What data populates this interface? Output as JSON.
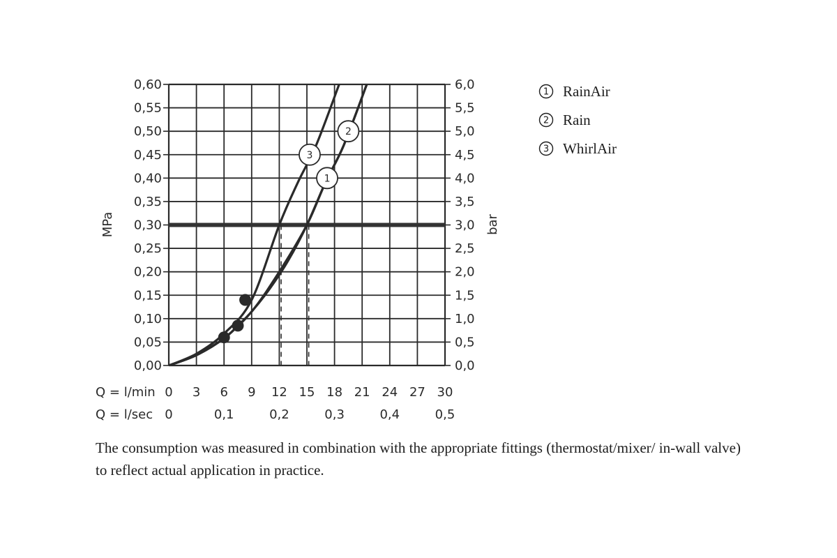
{
  "chart_data": {
    "type": "line",
    "left_axis": {
      "label": "MPa",
      "range": [
        0,
        0.6
      ],
      "ticks": [
        "0,60",
        "0,55",
        "0,50",
        "0,45",
        "0,40",
        "0,35",
        "0,30",
        "0,25",
        "0,20",
        "0,15",
        "0,10",
        "0,05",
        "0,00"
      ]
    },
    "right_axis": {
      "label": "bar",
      "range": [
        0,
        6
      ],
      "ticks": [
        "6,0",
        "5,5",
        "5,0",
        "4,5",
        "4,0",
        "3,5",
        "3,0",
        "2,5",
        "2,0",
        "1,5",
        "1,0",
        "0,5",
        "0,0"
      ]
    },
    "x_axis_lmin": {
      "label": "Q = l/min",
      "range": [
        0,
        30
      ],
      "ticks": [
        "0",
        "3",
        "6",
        "9",
        "12",
        "15",
        "18",
        "21",
        "24",
        "27",
        "30"
      ]
    },
    "x_axis_lsec": {
      "label": "Q = l/sec",
      "range": [
        0,
        0.5
      ],
      "ticks": [
        "0",
        "0,1",
        "0,2",
        "0,3",
        "0,4",
        "0,5"
      ]
    },
    "grid": true,
    "reference_line": {
      "y": 0.3
    },
    "series": [
      {
        "name": "RainAir",
        "marker_label": "1",
        "marker_at": [
          17.2,
          0.4
        ],
        "x": [
          0,
          3,
          6,
          7.5,
          9,
          11,
          13,
          15,
          17,
          19,
          21.5
        ],
        "y": [
          0,
          0.022,
          0.058,
          0.085,
          0.115,
          0.165,
          0.225,
          0.3,
          0.39,
          0.47,
          0.6
        ]
      },
      {
        "name": "Rain",
        "marker_label": "2",
        "marker_at": [
          19.5,
          0.5
        ],
        "x": [
          0,
          3,
          6,
          9,
          12,
          15,
          17,
          19,
          21.5
        ],
        "y": [
          0,
          0.022,
          0.058,
          0.115,
          0.2,
          0.3,
          0.39,
          0.47,
          0.6
        ]
      },
      {
        "name": "WhirlAir",
        "marker_label": "3",
        "marker_at": [
          15.3,
          0.45
        ],
        "x": [
          0,
          3,
          6,
          9,
          12,
          14,
          16,
          18.5
        ],
        "y": [
          0,
          0.025,
          0.068,
          0.14,
          0.3,
          0.39,
          0.47,
          0.6
        ]
      }
    ],
    "points": [
      {
        "x": 6,
        "y": 0.06
      },
      {
        "x": 7.5,
        "y": 0.085
      },
      {
        "x": 8.3,
        "y": 0.14
      }
    ],
    "dashed_verticals": [
      12.2,
      15.2
    ],
    "legend": [
      {
        "num": "1",
        "label": "RainAir"
      },
      {
        "num": "2",
        "label": "Rain"
      },
      {
        "num": "3",
        "label": "WhirlAir"
      }
    ],
    "legend_position": "top-right"
  },
  "footnote": "The consumption was measured in combination with the appropriate fittings (thermostat/mixer/ in-wall valve) to reflect actual application in practice.",
  "colors": {
    "line": "#2a2a2a",
    "grid": "#2a2a2a",
    "text": "#1c1c1c"
  }
}
